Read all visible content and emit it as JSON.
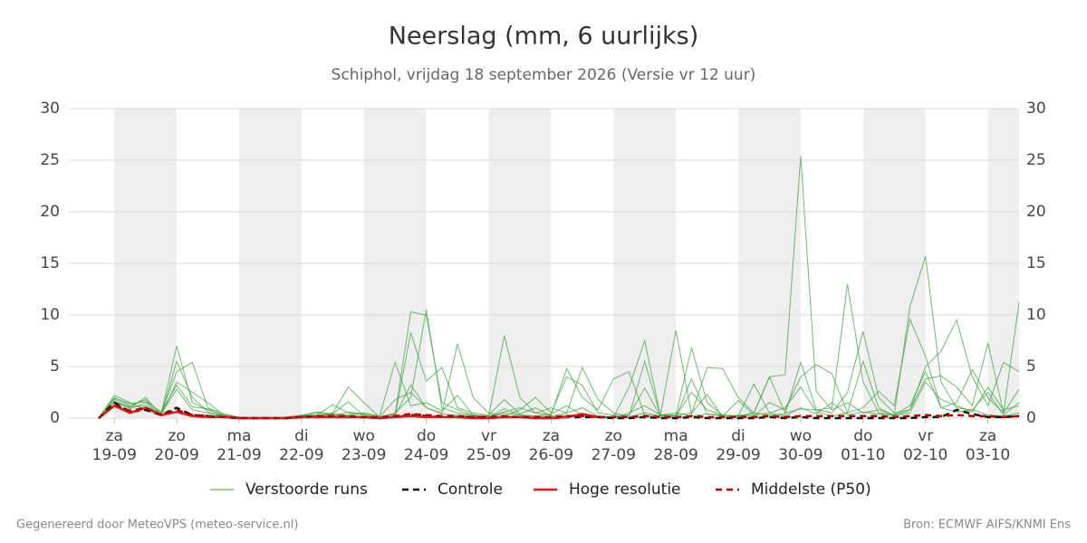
{
  "chart_data": {
    "type": "line",
    "title": "Neerslag (mm, 6 uurlijks)",
    "subtitle": "Schiphol, vrijdag 18 september 2026 (Versie vr 12 uur)",
    "xlim": [
      0,
      59
    ],
    "xticks": [
      {
        "value": 1,
        "label": [
          "za",
          "19-09"
        ]
      },
      {
        "value": 5,
        "label": [
          "zo",
          "20-09"
        ]
      },
      {
        "value": 9,
        "label": [
          "ma",
          "21-09"
        ]
      },
      {
        "value": 13,
        "label": [
          "di",
          "22-09"
        ]
      },
      {
        "value": 17,
        "label": [
          "wo",
          "23-09"
        ]
      },
      {
        "value": 21,
        "label": [
          "do",
          "24-09"
        ]
      },
      {
        "value": 25,
        "label": [
          "vr",
          "25-09"
        ]
      },
      {
        "value": 29,
        "label": [
          "za",
          "26-09"
        ]
      },
      {
        "value": 33,
        "label": [
          "zo",
          "27-09"
        ]
      },
      {
        "value": 37,
        "label": [
          "ma",
          "28-09"
        ]
      },
      {
        "value": 41,
        "label": [
          "di",
          "29-09"
        ]
      },
      {
        "value": 45,
        "label": [
          "wo",
          "30-09"
        ]
      },
      {
        "value": 49,
        "label": [
          "do",
          "01-10"
        ]
      },
      {
        "value": 53,
        "label": [
          "vr",
          "02-10"
        ]
      },
      {
        "value": 57,
        "label": [
          "za",
          "03-10"
        ]
      }
    ],
    "ylim": [
      0,
      30
    ],
    "yticks": [
      0,
      5,
      10,
      15,
      20,
      25,
      30
    ],
    "grid": true,
    "shading": true,
    "series": [
      {
        "name": "Verstoorde runs",
        "color": "#3fa33f",
        "members": [
          [
            0,
            2.0,
            1.2,
            1.8,
            0.4,
            7.0,
            1.5,
            0.8,
            0.3,
            0.1,
            0,
            0,
            0,
            0.2,
            0.5,
            0.3,
            0.2,
            0,
            0.1,
            0.5,
            2.0,
            10.5,
            1.0,
            0.5,
            0.3,
            0.2,
            0.5,
            0.3,
            0.2,
            0.1,
            0.3,
            0.2,
            0.1,
            0,
            0.5,
            1.2,
            0.3,
            0.5,
            0.2,
            0.4,
            0.3,
            0.1,
            0.5,
            4.0,
            4.2,
            25.4,
            2.6,
            0.8,
            1.5,
            0.5,
            0.8,
            0.3,
            1.2,
            4.5,
            1.0,
            0.6,
            0.8,
            0.3,
            0.2,
            0.5
          ],
          [
            0,
            1.8,
            0.9,
            1.5,
            0.3,
            5.5,
            2.0,
            0.6,
            0.2,
            0,
            0,
            0,
            0,
            0.3,
            0.2,
            0.5,
            3.0,
            1.5,
            0.1,
            1.8,
            2.5,
            1.0,
            0.5,
            7.2,
            2.0,
            0.5,
            0.2,
            0.8,
            2.0,
            0.5,
            4.0,
            3.2,
            0.5,
            0.3,
            0.1,
            0.5,
            0.2,
            0.3,
            6.8,
            1.5,
            0.3,
            0.2,
            0.5,
            4.0,
            0.5,
            0.9,
            0.8,
            1.0,
            13.0,
            3.5,
            0.5,
            0.3,
            10.8,
            15.7,
            3.5,
            1.0,
            0.8,
            2.5,
            0.3,
            1.5
          ],
          [
            0,
            2.2,
            1.5,
            0.8,
            0.5,
            4.5,
            5.4,
            1.0,
            0.4,
            0.1,
            0,
            0,
            0,
            0.2,
            0.3,
            1.3,
            0.5,
            0.3,
            0.1,
            0.4,
            10.3,
            10.0,
            1.5,
            0.8,
            0.3,
            0.2,
            8.0,
            2.0,
            0.5,
            0.3,
            4.8,
            2.0,
            0.8,
            3.8,
            4.5,
            0.3,
            0.2,
            8.5,
            0.4,
            4.9,
            4.8,
            2.0,
            0.5,
            0.3,
            0.4,
            5.4,
            0.8,
            0.5,
            2.5,
            8.4,
            2.0,
            0.5,
            0.8,
            5.0,
            6.5,
            9.5,
            4.0,
            1.2,
            5.4,
            4.5
          ],
          [
            0,
            1.5,
            1.0,
            2.0,
            0.3,
            3.5,
            2.5,
            1.5,
            0.3,
            0.1,
            0,
            0,
            0.1,
            0.3,
            0.6,
            0.4,
            1.6,
            0.2,
            0,
            0.2,
            8.3,
            3.6,
            4.9,
            1.0,
            0.5,
            0.3,
            1.8,
            0.4,
            1.0,
            0.2,
            0.5,
            1.0,
            0.2,
            0.1,
            3.0,
            7.5,
            0.3,
            0.2,
            2.5,
            0.8,
            0.3,
            0.2,
            3.3,
            0.5,
            1.0,
            3.0,
            0.6,
            0.2,
            0.5,
            5.5,
            1.0,
            0.2,
            0.8,
            3.8,
            4.1,
            3.0,
            1.2,
            7.3,
            0.5,
            11.2
          ],
          [
            0,
            1.9,
            1.4,
            1.6,
            0.6,
            3.2,
            1.1,
            0.9,
            0.2,
            0,
            0,
            0,
            0,
            0.1,
            0.2,
            0.4,
            0.3,
            0.5,
            0.2,
            5.4,
            1.2,
            1.5,
            0.7,
            2.2,
            0.3,
            0.1,
            0.6,
            1.0,
            0.5,
            1.0,
            0.5,
            4.9,
            1.8,
            0.5,
            0.2,
            5.5,
            0.3,
            0.3,
            0.5,
            2.3,
            0.1,
            0.3,
            0.2,
            1.5,
            0.8,
            4.0,
            5.2,
            4.3,
            0.5,
            1.0,
            2.6,
            1.2,
            9.6,
            6.0,
            1.0,
            1.5,
            4.7,
            2.0,
            0.5,
            2.8
          ],
          [
            0,
            1.6,
            1.1,
            1.2,
            0.4,
            2.8,
            0.8,
            0.5,
            0.2,
            0,
            0,
            0,
            0,
            0.1,
            0.3,
            0.2,
            0.6,
            0.4,
            0.1,
            0.3,
            3.2,
            1.0,
            0.4,
            0.3,
            0.2,
            0.1,
            0.9,
            0.3,
            0.2,
            0.4,
            1.2,
            0.3,
            0.2,
            0.1,
            0.3,
            2.9,
            0.2,
            0.1,
            3.8,
            0.4,
            0.2,
            1.7,
            0.3,
            0.5,
            0.2,
            1.0,
            0.4,
            1.5,
            0.3,
            0.6,
            0.4,
            0.3,
            0.5,
            3.5,
            1.8,
            1.2,
            0.6,
            3.0,
            0.8,
            1.2
          ]
        ]
      },
      {
        "name": "Controle",
        "color": "#111111",
        "dashed": true,
        "values": [
          0,
          1.5,
          0.6,
          0.8,
          0.3,
          1.0,
          0.3,
          0.2,
          0.1,
          0,
          0,
          0,
          0,
          0.1,
          0.1,
          0.1,
          0.1,
          0.1,
          0,
          0.1,
          0.3,
          0.2,
          0.1,
          0.1,
          0.1,
          0,
          0.1,
          0.1,
          0,
          0,
          0.1,
          0.1,
          0.1,
          0,
          0,
          0.1,
          0,
          0,
          0.1,
          0,
          0,
          0,
          0,
          0.1,
          0,
          0.1,
          0,
          0,
          0,
          0,
          0,
          0,
          0,
          0.1,
          0.1,
          0.8,
          0.4,
          0.1,
          0.1,
          0.2
        ]
      },
      {
        "name": "Hoge resolutie",
        "color": "#e31a1c",
        "dashed": false,
        "values": [
          0,
          1.2,
          0.5,
          1.0,
          0.3,
          0.6,
          0.2,
          0.1,
          0.1,
          0,
          0,
          0,
          0,
          0.1,
          0.1,
          0.1,
          0.1,
          0.1,
          0,
          0.1,
          0.2,
          0.1,
          0.1,
          0.1,
          0,
          0,
          0.1,
          0.1,
          0,
          0,
          0.1,
          0.4,
          0.1,
          null,
          null,
          null,
          null,
          null,
          null,
          null,
          null,
          null,
          null,
          null,
          null,
          null,
          null,
          null,
          null,
          null,
          null,
          null,
          null,
          null,
          null,
          null,
          null,
          null,
          null,
          null
        ]
      },
      {
        "name": "Middelste (P50)",
        "color": "#b30000",
        "dashed": true,
        "values": [
          0,
          1.3,
          0.7,
          1.0,
          0.3,
          0.8,
          0.3,
          0.2,
          0.1,
          0,
          0,
          0,
          0,
          0.1,
          0.2,
          0.2,
          0.2,
          0.1,
          0.1,
          0.2,
          0.4,
          0.3,
          0.2,
          0.2,
          0.1,
          0.1,
          0.2,
          0.1,
          0.1,
          0.1,
          0.2,
          0.2,
          0.1,
          0.1,
          0.1,
          0.2,
          0.1,
          0.1,
          0.2,
          0.1,
          0.1,
          0.1,
          0.1,
          0.2,
          0.1,
          0.2,
          0.2,
          0.2,
          0.2,
          0.2,
          0.2,
          0.1,
          0.2,
          0.3,
          0.2,
          0.3,
          0.2,
          0.2,
          0.1,
          0.2
        ]
      }
    ]
  },
  "footer": {
    "left": "Gegenereerd door MeteoVPS (meteo-service.nl)",
    "right": "Bron: ECMWF AIFS/KNMI Ens"
  }
}
